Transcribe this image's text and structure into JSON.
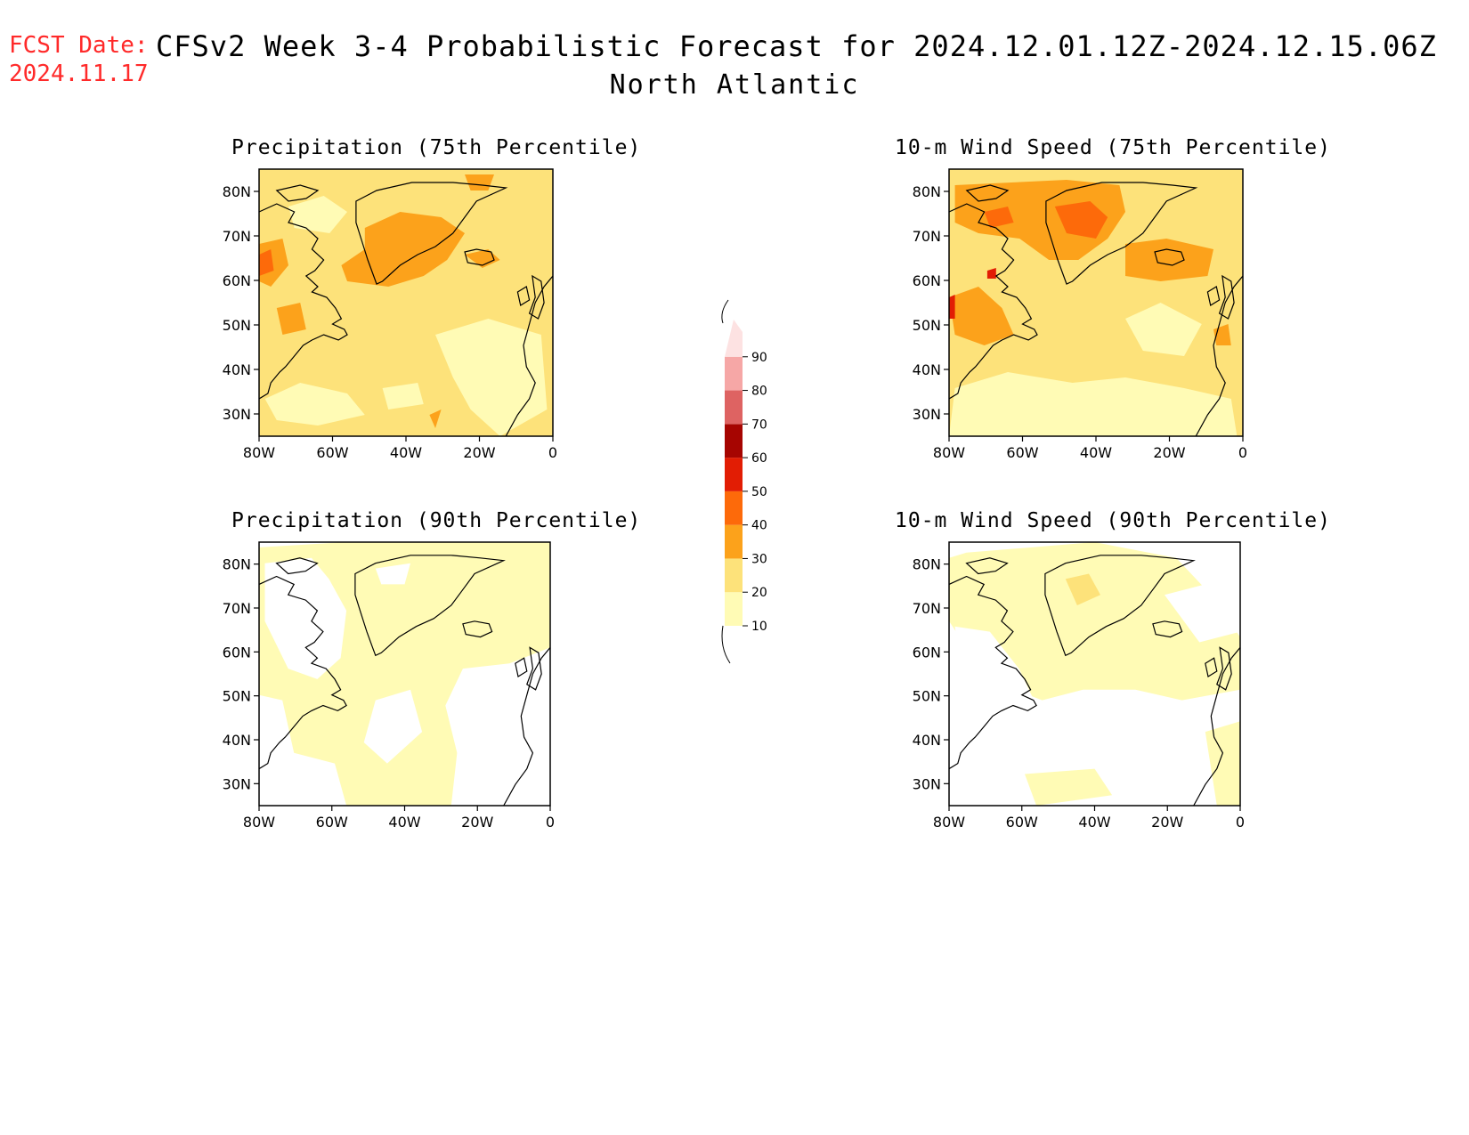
{
  "header": {
    "fcst_label": "FCST Date:",
    "fcst_date": "2024.11.17",
    "title": "CFSv2 Week 3-4 Probabilistic Forecast for 2024.12.01.12Z-2024.12.15.06Z",
    "region": "North Atlantic"
  },
  "axes": {
    "lon_labels": [
      "80W",
      "60W",
      "40W",
      "20W",
      "0"
    ],
    "lat_labels": [
      "80N",
      "70N",
      "60N",
      "50N",
      "40N",
      "30N"
    ]
  },
  "panels": [
    {
      "title": "Precipitation (75th Percentile)",
      "dominant_bin": "20-30"
    },
    {
      "title": "10-m Wind Speed (75th Percentile)",
      "dominant_bin": "20-30"
    },
    {
      "title": "Precipitation (90th Percentile)",
      "dominant_bin": "10-20"
    },
    {
      "title": "10-m Wind Speed (90th Percentile)",
      "dominant_bin": "10-20"
    }
  ],
  "colorbar": {
    "levels": [
      "10",
      "20",
      "30",
      "40",
      "50",
      "60",
      "70",
      "80",
      "90"
    ],
    "colors": [
      "#fffbb5",
      "#fde27a",
      "#fca21b",
      "#fd6a0a",
      "#e21d04",
      "#a60501",
      "#de6362",
      "#f6a7a6",
      "#fde2e2"
    ]
  }
}
